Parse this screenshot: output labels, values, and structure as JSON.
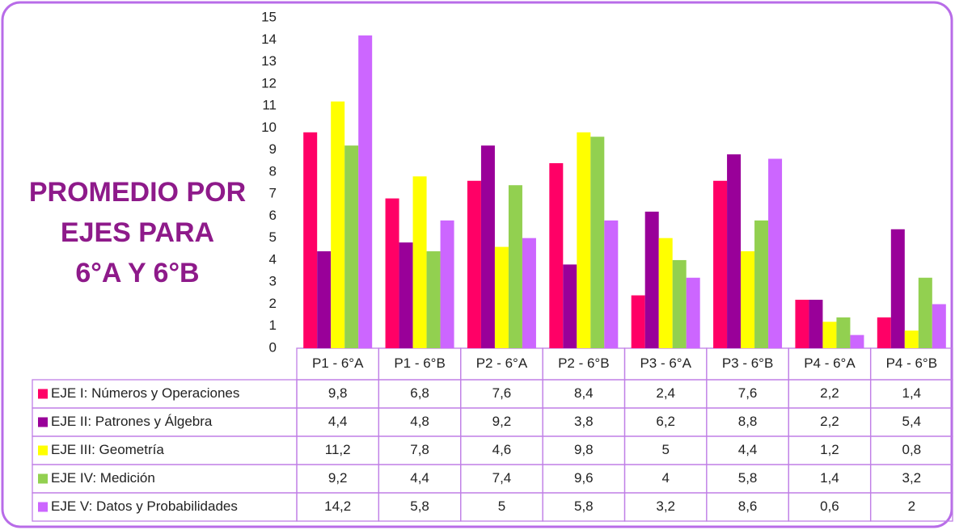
{
  "chart_data": {
    "type": "bar",
    "title": [
      "PROMEDIO POR",
      "EJES PARA",
      "6°A Y 6°B"
    ],
    "categories": [
      "P1 - 6°A",
      "P1 - 6°B",
      "P2 - 6°A",
      "P2 - 6°B",
      "P3 - 6°A",
      "P3 - 6°B",
      "P4 - 6°A",
      "P4 - 6°B"
    ],
    "series": [
      {
        "name": "EJE I:  Números y Operaciones",
        "color": "#ff0066",
        "values": [
          9.8,
          6.8,
          7.6,
          8.4,
          2.4,
          7.6,
          2.2,
          1.4
        ],
        "value_labels": [
          "9,8",
          "6,8",
          "7,6",
          "8,4",
          "2,4",
          "7,6",
          "2,2",
          "1,4"
        ]
      },
      {
        "name": "EJE II: Patrones y Álgebra",
        "color": "#990099",
        "values": [
          4.4,
          4.8,
          9.2,
          3.8,
          6.2,
          8.8,
          2.2,
          5.4
        ],
        "value_labels": [
          "4,4",
          "4,8",
          "9,2",
          "3,8",
          "6,2",
          "8,8",
          "2,2",
          "5,4"
        ]
      },
      {
        "name": "EJE III: Geometría",
        "color": "#ffff00",
        "values": [
          11.2,
          7.8,
          4.6,
          9.8,
          5,
          4.4,
          1.2,
          0.8
        ],
        "value_labels": [
          "11,2",
          "7,8",
          "4,6",
          "9,8",
          "5",
          "4,4",
          "1,2",
          "0,8"
        ]
      },
      {
        "name": "EJE IV: Medición",
        "color": "#92d050",
        "values": [
          9.2,
          4.4,
          7.4,
          9.6,
          4,
          5.8,
          1.4,
          3.2
        ],
        "value_labels": [
          "9,2",
          "4,4",
          "7,4",
          "9,6",
          "4",
          "5,8",
          "1,4",
          "3,2"
        ]
      },
      {
        "name": "EJE V: Datos y Probabilidades",
        "color": "#cc66ff",
        "values": [
          14.2,
          5.8,
          5,
          5.8,
          3.2,
          8.6,
          0.6,
          2
        ],
        "value_labels": [
          "14,2",
          "5,8",
          "5",
          "5,8",
          "3,2",
          "8,6",
          "0,6",
          "2"
        ]
      }
    ],
    "ylim": [
      0,
      15
    ],
    "yticks": [
      0,
      1,
      2,
      3,
      4,
      5,
      6,
      7,
      8,
      9,
      10,
      11,
      12,
      13,
      14,
      15
    ]
  }
}
